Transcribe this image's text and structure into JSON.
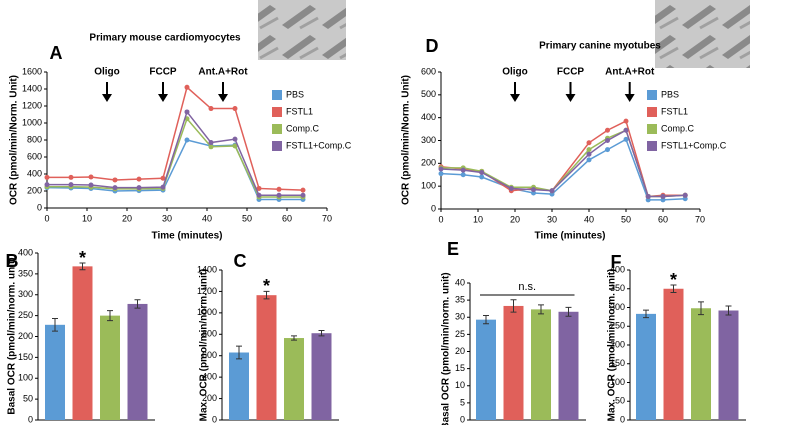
{
  "chart_data": [
    {
      "type": "line",
      "panel": "A",
      "title": "Primary mouse cardiomyocytes",
      "xlabel": "Time (minutes)",
      "ylabel": "OCR (pmol/min/Norm. Unit)",
      "annotations": [
        "Oligo",
        "FCCP",
        "Ant.A+Rot"
      ],
      "x": [
        0,
        6,
        11,
        17,
        23,
        29,
        35,
        41,
        47,
        53,
        58,
        64
      ],
      "xlim": [
        0,
        70
      ],
      "xticks": [
        0,
        10,
        20,
        30,
        40,
        50,
        60,
        70
      ],
      "ylim": [
        0,
        1600
      ],
      "yticks": [
        0,
        200,
        400,
        600,
        800,
        1000,
        1200,
        1400,
        1600
      ],
      "legend": "right",
      "series": [
        {
          "name": "PBS",
          "color": "#5b9bd5",
          "values": [
            240,
            235,
            230,
            200,
            205,
            210,
            800,
            730,
            740,
            100,
            100,
            100
          ]
        },
        {
          "name": "FSTL1",
          "color": "#e0605a",
          "values": [
            360,
            360,
            365,
            330,
            340,
            350,
            1420,
            1170,
            1170,
            230,
            220,
            210
          ]
        },
        {
          "name": "Comp.C",
          "color": "#9bbb59",
          "values": [
            250,
            250,
            245,
            225,
            225,
            230,
            1050,
            720,
            730,
            130,
            130,
            130
          ]
        },
        {
          "name": "FSTL1+Comp.C",
          "color": "#8064a2",
          "values": [
            275,
            275,
            270,
            240,
            240,
            245,
            1130,
            770,
            810,
            150,
            150,
            150
          ]
        }
      ]
    },
    {
      "type": "line",
      "panel": "D",
      "title": "Primary canine myotubes",
      "xlabel": "Time (minutes)",
      "ylabel": "OCR (pmol/min/Norm. Unit)",
      "annotations": [
        "Oligo",
        "FCCP",
        "Ant.A+Rot"
      ],
      "x": [
        0,
        6,
        11,
        19,
        25,
        30,
        40,
        45,
        50,
        56,
        60,
        66
      ],
      "xlim": [
        0,
        70
      ],
      "xticks": [
        0,
        10,
        20,
        30,
        40,
        50,
        60,
        70
      ],
      "ylim": [
        0,
        600
      ],
      "yticks": [
        0,
        100,
        200,
        300,
        400,
        500,
        600
      ],
      "legend": "right",
      "series": [
        {
          "name": "PBS",
          "color": "#5b9bd5",
          "values": [
            155,
            150,
            140,
            90,
            70,
            65,
            215,
            260,
            305,
            40,
            40,
            45
          ]
        },
        {
          "name": "FSTL1",
          "color": "#e0605a",
          "values": [
            185,
            175,
            165,
            80,
            90,
            80,
            290,
            345,
            385,
            55,
            60,
            60
          ]
        },
        {
          "name": "Comp.C",
          "color": "#9bbb59",
          "values": [
            180,
            180,
            165,
            95,
            95,
            80,
            260,
            310,
            345,
            55,
            55,
            60
          ]
        },
        {
          "name": "FSTL1+Comp.C",
          "color": "#8064a2",
          "values": [
            175,
            170,
            160,
            90,
            85,
            80,
            240,
            300,
            345,
            55,
            55,
            60
          ]
        }
      ]
    },
    {
      "type": "bar",
      "panel": "B",
      "ylabel": "Basal OCR (pmol/min/norm. unit)",
      "annotation": "*",
      "values": [
        228,
        368,
        250,
        278
      ],
      "errors": [
        15,
        8,
        12,
        10
      ],
      "colors": [
        "#5b9bd5",
        "#e0605a",
        "#9bbb59",
        "#8064a2"
      ],
      "ylim": [
        0,
        400
      ],
      "yticks": [
        0,
        50,
        100,
        150,
        200,
        250,
        300,
        350,
        400
      ]
    },
    {
      "type": "bar",
      "panel": "C",
      "ylabel": "Max. OCR (pmol/min/norm. unit)",
      "annotation": "*",
      "values": [
        630,
        1165,
        765,
        810
      ],
      "errors": [
        60,
        35,
        20,
        25
      ],
      "colors": [
        "#5b9bd5",
        "#e0605a",
        "#9bbb59",
        "#8064a2"
      ],
      "ylim": [
        0,
        1400
      ],
      "yticks": [
        0,
        200,
        400,
        600,
        800,
        1000,
        1200,
        1400
      ]
    },
    {
      "type": "bar",
      "panel": "E",
      "ylabel": "Basal OCR (pmol/min/norm. unit)",
      "annotation": "n.s.",
      "values": [
        29.3,
        33.3,
        32.3,
        31.6
      ],
      "errors": [
        1.2,
        1.8,
        1.3,
        1.3
      ],
      "colors": [
        "#5b9bd5",
        "#e0605a",
        "#9bbb59",
        "#8064a2"
      ],
      "ylim": [
        0,
        40
      ],
      "yticks": [
        0,
        5,
        10,
        15,
        20,
        25,
        30,
        35,
        40
      ]
    },
    {
      "type": "bar",
      "panel": "F",
      "ylabel": "Max. OCR (pmol/min/norm. unit)",
      "annotation": "*",
      "values": [
        283,
        350,
        298,
        292
      ],
      "errors": [
        10,
        10,
        17,
        12
      ],
      "colors": [
        "#5b9bd5",
        "#e0605a",
        "#9bbb59",
        "#8064a2"
      ],
      "ylim": [
        0,
        400
      ],
      "yticks": [
        0,
        50,
        100,
        150,
        200,
        250,
        300,
        350,
        400
      ]
    }
  ]
}
